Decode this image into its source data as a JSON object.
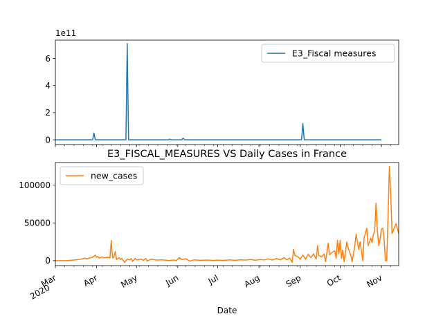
{
  "chart_data": [
    {
      "type": "line",
      "title": "",
      "xlabel": "",
      "ylabel": "",
      "y_scale_label": "1e11",
      "ylim": [
        -0.35,
        7.35
      ],
      "yticks": [
        0,
        2,
        4,
        6
      ],
      "legend_loc": "upper right",
      "grid": false,
      "series": [
        {
          "name": "E3_Fiscal measures",
          "color": "#1f77b4",
          "points": [
            [
              "2020-03-01",
              0
            ],
            [
              "2020-03-29",
              0
            ],
            [
              "2020-03-30",
              0.5
            ],
            [
              "2020-03-31",
              0
            ],
            [
              "2020-04-23",
              0
            ],
            [
              "2020-04-24",
              7.1
            ],
            [
              "2020-04-25",
              0
            ],
            [
              "2020-05-25",
              0
            ],
            [
              "2020-05-26",
              0.05
            ],
            [
              "2020-05-27",
              0
            ],
            [
              "2020-06-04",
              0
            ],
            [
              "2020-06-05",
              0.12
            ],
            [
              "2020-06-06",
              0
            ],
            [
              "2020-09-02",
              0
            ],
            [
              "2020-09-03",
              1.2
            ],
            [
              "2020-09-04",
              0
            ],
            [
              "2020-11-01",
              0
            ]
          ]
        }
      ]
    },
    {
      "type": "line",
      "title": "E3_FISCAL_MEASURES VS Daily Cases in France",
      "xlabel": "Date",
      "ylabel": "",
      "ylim": [
        -6500,
        130000
      ],
      "yticks": [
        0,
        50000,
        100000
      ],
      "ytick_labels": [
        "0",
        "50000",
        "100000"
      ],
      "legend_loc": "upper left",
      "grid": false,
      "xticks": [
        {
          "date": "2020-03-01",
          "label": "Mar",
          "sublabel": "2020"
        },
        {
          "date": "2020-04-01",
          "label": "Apr"
        },
        {
          "date": "2020-05-01",
          "label": "May"
        },
        {
          "date": "2020-06-01",
          "label": "Jun"
        },
        {
          "date": "2020-07-01",
          "label": "Jul"
        },
        {
          "date": "2020-08-01",
          "label": "Aug"
        },
        {
          "date": "2020-09-01",
          "label": "Sep"
        },
        {
          "date": "2020-10-01",
          "label": "Oct"
        },
        {
          "date": "2020-11-01",
          "label": "Nov"
        }
      ],
      "series": [
        {
          "name": "new_cases",
          "color": "#ff7f0e",
          "points": [
            [
              "2020-03-01",
              0
            ],
            [
              "2020-03-10",
              200
            ],
            [
              "2020-03-15",
              900
            ],
            [
              "2020-03-20",
              1800
            ],
            [
              "2020-03-23",
              3500
            ],
            [
              "2020-03-25",
              2500
            ],
            [
              "2020-03-27",
              3800
            ],
            [
              "2020-03-29",
              4500
            ],
            [
              "2020-03-31",
              7500
            ],
            [
              "2020-04-01",
              4500
            ],
            [
              "2020-04-02",
              5500
            ],
            [
              "2020-04-03",
              3500
            ],
            [
              "2020-04-05",
              5000
            ],
            [
              "2020-04-07",
              3800
            ],
            [
              "2020-04-09",
              4500
            ],
            [
              "2020-04-11",
              4000
            ],
            [
              "2020-04-12",
              26800
            ],
            [
              "2020-04-13",
              3500
            ],
            [
              "2020-04-14",
              5000
            ],
            [
              "2020-04-15",
              12000
            ],
            [
              "2020-04-16",
              1500
            ],
            [
              "2020-04-18",
              4000
            ],
            [
              "2020-04-19",
              1500
            ],
            [
              "2020-04-20",
              3000
            ],
            [
              "2020-04-22",
              -2500
            ],
            [
              "2020-04-24",
              2000
            ],
            [
              "2020-04-26",
              1000
            ],
            [
              "2020-04-27",
              3000
            ],
            [
              "2020-04-28",
              -1000
            ],
            [
              "2020-04-30",
              3000
            ],
            [
              "2020-05-01",
              1000
            ],
            [
              "2020-05-04",
              2000
            ],
            [
              "2020-05-06",
              500
            ],
            [
              "2020-05-08",
              3000
            ],
            [
              "2020-05-09",
              -500
            ],
            [
              "2020-05-12",
              2000
            ],
            [
              "2020-05-16",
              800
            ],
            [
              "2020-05-20",
              1200
            ],
            [
              "2020-05-25",
              300
            ],
            [
              "2020-05-29",
              800
            ],
            [
              "2020-05-31",
              200
            ],
            [
              "2020-06-02",
              4000
            ],
            [
              "2020-06-04",
              1500
            ],
            [
              "2020-06-07",
              2500
            ],
            [
              "2020-06-10",
              -500
            ],
            [
              "2020-06-13",
              1000
            ],
            [
              "2020-06-18",
              500
            ],
            [
              "2020-06-23",
              800
            ],
            [
              "2020-06-28",
              400
            ],
            [
              "2020-07-01",
              700
            ],
            [
              "2020-07-05",
              400
            ],
            [
              "2020-07-10",
              1000
            ],
            [
              "2020-07-14",
              500
            ],
            [
              "2020-07-18",
              1200
            ],
            [
              "2020-07-22",
              800
            ],
            [
              "2020-07-26",
              1500
            ],
            [
              "2020-07-29",
              600
            ],
            [
              "2020-08-02",
              1500
            ],
            [
              "2020-08-05",
              1000
            ],
            [
              "2020-08-08",
              2500
            ],
            [
              "2020-08-11",
              800
            ],
            [
              "2020-08-14",
              3000
            ],
            [
              "2020-08-17",
              1000
            ],
            [
              "2020-08-20",
              4000
            ],
            [
              "2020-08-22",
              1000
            ],
            [
              "2020-08-24",
              3500
            ],
            [
              "2020-08-26",
              -2000
            ],
            [
              "2020-08-27",
              15000
            ],
            [
              "2020-08-28",
              7000
            ],
            [
              "2020-08-30",
              5500
            ],
            [
              "2020-09-01",
              2000
            ],
            [
              "2020-09-03",
              7500
            ],
            [
              "2020-09-05",
              2000
            ],
            [
              "2020-09-07",
              8500
            ],
            [
              "2020-09-09",
              4000
            ],
            [
              "2020-09-11",
              9000
            ],
            [
              "2020-09-13",
              2000
            ],
            [
              "2020-09-14",
              20000
            ],
            [
              "2020-09-15",
              7000
            ],
            [
              "2020-09-17",
              5000
            ],
            [
              "2020-09-19",
              9000
            ],
            [
              "2020-09-20",
              -1500
            ],
            [
              "2020-09-22",
              23000
            ],
            [
              "2020-09-23",
              8000
            ],
            [
              "2020-09-25",
              11000
            ],
            [
              "2020-09-27",
              13000
            ],
            [
              "2020-09-28",
              3000
            ],
            [
              "2020-09-29",
              27000
            ],
            [
              "2020-09-30",
              9000
            ],
            [
              "2020-10-01",
              27000
            ],
            [
              "2020-10-02",
              3000
            ],
            [
              "2020-10-03",
              14000
            ],
            [
              "2020-10-04",
              -1500
            ],
            [
              "2020-10-06",
              25000
            ],
            [
              "2020-10-07",
              17000
            ],
            [
              "2020-10-09",
              7000
            ],
            [
              "2020-10-10",
              -1500
            ],
            [
              "2020-10-12",
              20000
            ],
            [
              "2020-10-13",
              35000
            ],
            [
              "2020-10-15",
              15000
            ],
            [
              "2020-10-16",
              25000
            ],
            [
              "2020-10-18",
              0
            ],
            [
              "2020-10-19",
              30000
            ],
            [
              "2020-10-21",
              43000
            ],
            [
              "2020-10-22",
              20000
            ],
            [
              "2020-10-24",
              30000
            ],
            [
              "2020-10-25",
              24000
            ],
            [
              "2020-10-26",
              35000
            ],
            [
              "2020-10-27",
              40000
            ],
            [
              "2020-10-28",
              76000
            ],
            [
              "2020-10-29",
              40000
            ],
            [
              "2020-10-30",
              20000
            ],
            [
              "2020-10-31",
              28000
            ],
            [
              "2020-11-01",
              42000
            ],
            [
              "2020-11-02",
              43000
            ],
            [
              "2020-11-03",
              30000
            ],
            [
              "2020-11-04",
              0
            ],
            [
              "2020-11-05",
              0
            ],
            [
              "2020-11-06",
              60000
            ],
            [
              "2020-11-07",
              125000
            ],
            [
              "2020-11-08",
              90000
            ],
            [
              "2020-11-09",
              36000
            ],
            [
              "2020-11-10",
              40000
            ],
            [
              "2020-11-11",
              45000
            ],
            [
              "2020-11-12",
              49000
            ],
            [
              "2020-11-13",
              43000
            ],
            [
              "2020-11-14",
              36000
            ]
          ]
        }
      ]
    }
  ]
}
